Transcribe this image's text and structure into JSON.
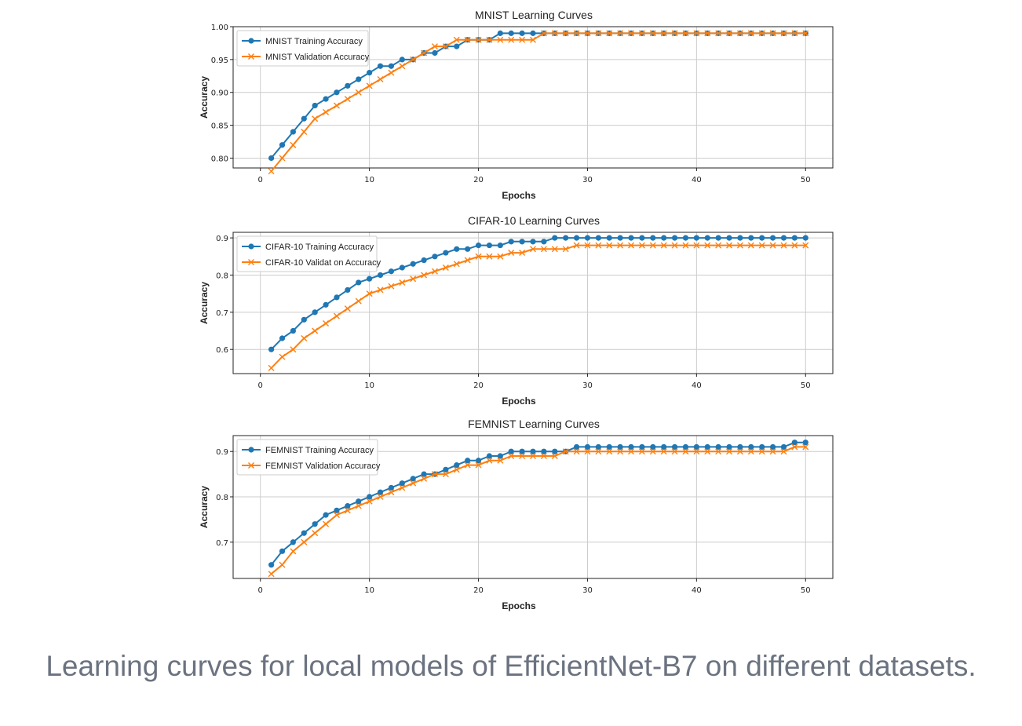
{
  "caption": "Learning curves for local models of EfficientNet-B7 on different datasets.",
  "colors": {
    "training": "#1f77b4",
    "validation": "#ff7f0e",
    "grid": "#cccccc"
  },
  "chart_data": [
    {
      "type": "line",
      "title": "MNIST Learning Curves",
      "xlabel": "Epochs",
      "ylabel": "Accuracy",
      "xlim": [
        -2.5,
        52.5
      ],
      "ylim": [
        0.785,
        1.0
      ],
      "xticks": [
        0,
        10,
        20,
        30,
        40,
        50
      ],
      "yticks": [
        0.8,
        0.85,
        0.9,
        0.95,
        1.0
      ],
      "ytick_labels": [
        "0.80",
        "0.85",
        "0.90",
        "0.95",
        "1.00"
      ],
      "grid": true,
      "legend": "upper-left",
      "x": [
        1,
        2,
        3,
        4,
        5,
        6,
        7,
        8,
        9,
        10,
        11,
        12,
        13,
        14,
        15,
        16,
        17,
        18,
        19,
        20,
        21,
        22,
        23,
        24,
        25,
        26,
        27,
        28,
        29,
        30,
        31,
        32,
        33,
        34,
        35,
        36,
        37,
        38,
        39,
        40,
        41,
        42,
        43,
        44,
        45,
        46,
        47,
        48,
        49,
        50
      ],
      "series": [
        {
          "name": "MNIST Training Accuracy",
          "marker": "circle",
          "color": "#1f77b4",
          "values": [
            0.8,
            0.82,
            0.84,
            0.86,
            0.88,
            0.89,
            0.9,
            0.91,
            0.92,
            0.93,
            0.94,
            0.94,
            0.95,
            0.95,
            0.96,
            0.96,
            0.97,
            0.97,
            0.98,
            0.98,
            0.98,
            0.99,
            0.99,
            0.99,
            0.99,
            0.99,
            0.99,
            0.99,
            0.99,
            0.99,
            0.99,
            0.99,
            0.99,
            0.99,
            0.99,
            0.99,
            0.99,
            0.99,
            0.99,
            0.99,
            0.99,
            0.99,
            0.99,
            0.99,
            0.99,
            0.99,
            0.99,
            0.99,
            0.99,
            0.99
          ]
        },
        {
          "name": "MNIST Validation Accuracy",
          "marker": "x",
          "color": "#ff7f0e",
          "values": [
            0.78,
            0.8,
            0.82,
            0.84,
            0.86,
            0.87,
            0.88,
            0.89,
            0.9,
            0.91,
            0.92,
            0.93,
            0.94,
            0.95,
            0.96,
            0.97,
            0.97,
            0.98,
            0.98,
            0.98,
            0.98,
            0.98,
            0.98,
            0.98,
            0.98,
            0.99,
            0.99,
            0.99,
            0.99,
            0.99,
            0.99,
            0.99,
            0.99,
            0.99,
            0.99,
            0.99,
            0.99,
            0.99,
            0.99,
            0.99,
            0.99,
            0.99,
            0.99,
            0.99,
            0.99,
            0.99,
            0.99,
            0.99,
            0.99,
            0.99
          ]
        }
      ]
    },
    {
      "type": "line",
      "title": "CIFAR-10 Learning Curves",
      "xlabel": "Epochs",
      "ylabel": "Accuracy",
      "xlim": [
        -2.5,
        52.5
      ],
      "ylim": [
        0.535,
        0.915
      ],
      "xticks": [
        0,
        10,
        20,
        30,
        40,
        50
      ],
      "yticks": [
        0.6,
        0.7,
        0.8,
        0.9
      ],
      "ytick_labels": [
        "0.6",
        "0.7",
        "0.8",
        "0.9"
      ],
      "grid": true,
      "legend": "upper-left",
      "x": [
        1,
        2,
        3,
        4,
        5,
        6,
        7,
        8,
        9,
        10,
        11,
        12,
        13,
        14,
        15,
        16,
        17,
        18,
        19,
        20,
        21,
        22,
        23,
        24,
        25,
        26,
        27,
        28,
        29,
        30,
        31,
        32,
        33,
        34,
        35,
        36,
        37,
        38,
        39,
        40,
        41,
        42,
        43,
        44,
        45,
        46,
        47,
        48,
        49,
        50
      ],
      "series": [
        {
          "name": "CIFAR-10 Training Accuracy",
          "marker": "circle",
          "color": "#1f77b4",
          "values": [
            0.6,
            0.63,
            0.65,
            0.68,
            0.7,
            0.72,
            0.74,
            0.76,
            0.78,
            0.79,
            0.8,
            0.81,
            0.82,
            0.83,
            0.84,
            0.85,
            0.86,
            0.87,
            0.87,
            0.88,
            0.88,
            0.88,
            0.89,
            0.89,
            0.89,
            0.89,
            0.9,
            0.9,
            0.9,
            0.9,
            0.9,
            0.9,
            0.9,
            0.9,
            0.9,
            0.9,
            0.9,
            0.9,
            0.9,
            0.9,
            0.9,
            0.9,
            0.9,
            0.9,
            0.9,
            0.9,
            0.9,
            0.9,
            0.9,
            0.9
          ]
        },
        {
          "name": "CIFAR-10 Validat on Accuracy",
          "marker": "x",
          "color": "#ff7f0e",
          "values": [
            0.55,
            0.58,
            0.6,
            0.63,
            0.65,
            0.67,
            0.69,
            0.71,
            0.73,
            0.75,
            0.76,
            0.77,
            0.78,
            0.79,
            0.8,
            0.81,
            0.82,
            0.83,
            0.84,
            0.85,
            0.85,
            0.85,
            0.86,
            0.86,
            0.87,
            0.87,
            0.87,
            0.87,
            0.88,
            0.88,
            0.88,
            0.88,
            0.88,
            0.88,
            0.88,
            0.88,
            0.88,
            0.88,
            0.88,
            0.88,
            0.88,
            0.88,
            0.88,
            0.88,
            0.88,
            0.88,
            0.88,
            0.88,
            0.88,
            0.88
          ]
        }
      ]
    },
    {
      "type": "line",
      "title": "FEMNIST Learning Curves",
      "xlabel": "Epochs",
      "ylabel": "Accuracy",
      "xlim": [
        -2.5,
        52.5
      ],
      "ylim": [
        0.62,
        0.935
      ],
      "xticks": [
        0,
        10,
        20,
        30,
        40,
        50
      ],
      "yticks": [
        0.7,
        0.8,
        0.9
      ],
      "ytick_labels": [
        "0.7",
        "0.8",
        "0.9"
      ],
      "grid": true,
      "legend": "upper-left",
      "x": [
        1,
        2,
        3,
        4,
        5,
        6,
        7,
        8,
        9,
        10,
        11,
        12,
        13,
        14,
        15,
        16,
        17,
        18,
        19,
        20,
        21,
        22,
        23,
        24,
        25,
        26,
        27,
        28,
        29,
        30,
        31,
        32,
        33,
        34,
        35,
        36,
        37,
        38,
        39,
        40,
        41,
        42,
        43,
        44,
        45,
        46,
        47,
        48,
        49,
        50
      ],
      "series": [
        {
          "name": "FEMNIST Training Accuracy",
          "marker": "circle",
          "color": "#1f77b4",
          "values": [
            0.65,
            0.68,
            0.7,
            0.72,
            0.74,
            0.76,
            0.77,
            0.78,
            0.79,
            0.8,
            0.81,
            0.82,
            0.83,
            0.84,
            0.85,
            0.85,
            0.86,
            0.87,
            0.88,
            0.88,
            0.89,
            0.89,
            0.9,
            0.9,
            0.9,
            0.9,
            0.9,
            0.9,
            0.91,
            0.91,
            0.91,
            0.91,
            0.91,
            0.91,
            0.91,
            0.91,
            0.91,
            0.91,
            0.91,
            0.91,
            0.91,
            0.91,
            0.91,
            0.91,
            0.91,
            0.91,
            0.91,
            0.91,
            0.92,
            0.92
          ]
        },
        {
          "name": "FEMNIST Validation Accuracy",
          "marker": "x",
          "color": "#ff7f0e",
          "values": [
            0.63,
            0.65,
            0.68,
            0.7,
            0.72,
            0.74,
            0.76,
            0.77,
            0.78,
            0.79,
            0.8,
            0.81,
            0.82,
            0.83,
            0.84,
            0.85,
            0.85,
            0.86,
            0.87,
            0.87,
            0.88,
            0.88,
            0.89,
            0.89,
            0.89,
            0.89,
            0.89,
            0.9,
            0.9,
            0.9,
            0.9,
            0.9,
            0.9,
            0.9,
            0.9,
            0.9,
            0.9,
            0.9,
            0.9,
            0.9,
            0.9,
            0.9,
            0.9,
            0.9,
            0.9,
            0.9,
            0.9,
            0.9,
            0.91,
            0.91
          ]
        }
      ]
    }
  ]
}
